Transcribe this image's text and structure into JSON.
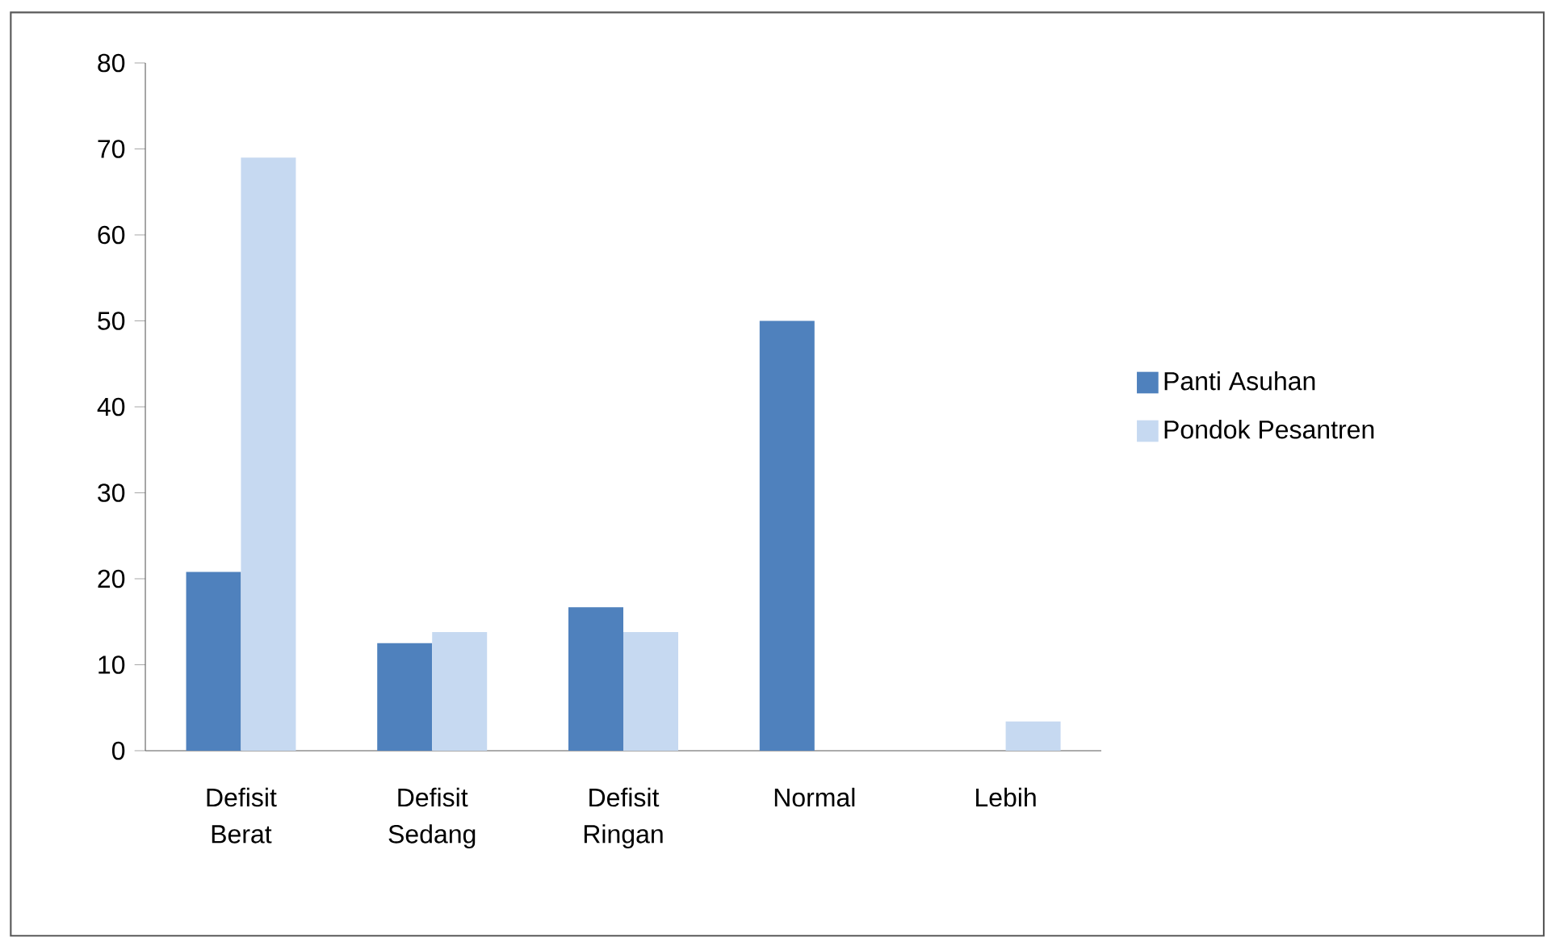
{
  "chart_data": {
    "type": "bar",
    "categories": [
      "Defisit Berat",
      "Defisit Sedang",
      "Defisit Ringan",
      "Normal",
      "Lebih"
    ],
    "series": [
      {
        "name": "Panti Asuhan",
        "color": "#4f81bd",
        "values": [
          20.8,
          12.5,
          16.7,
          50,
          0
        ]
      },
      {
        "name": "Pondok Pesantren",
        "color": "#c6d9f1",
        "values": [
          69,
          13.8,
          13.8,
          0,
          3.4
        ]
      }
    ],
    "ylim": [
      0,
      80
    ],
    "yticks": [
      0,
      10,
      20,
      30,
      40,
      50,
      60,
      70,
      80
    ],
    "grid": false,
    "legend": "right"
  }
}
